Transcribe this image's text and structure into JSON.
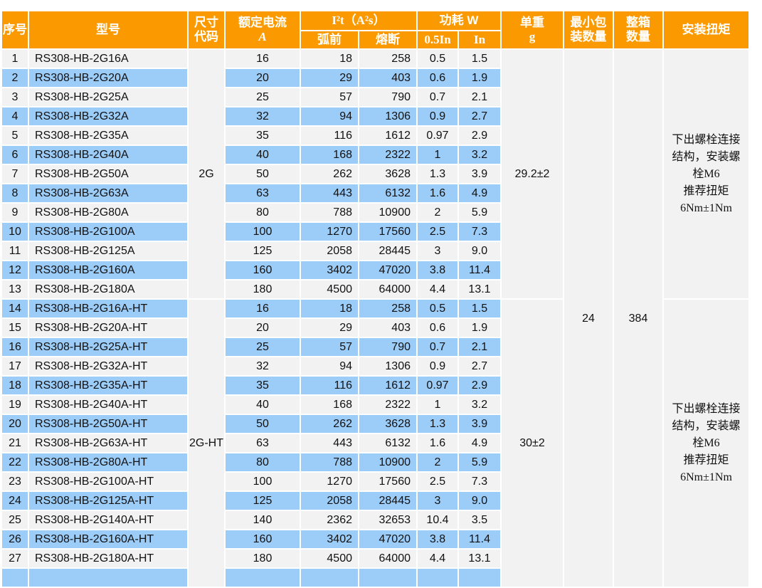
{
  "colors": {
    "header_bg": "#FB9A00",
    "header_text": "#FFFFFF",
    "row_blue": "#9CCCF8",
    "row_gray": "#F2F2F2",
    "merged_cell_bg": "#F2F2F2",
    "body_text": "#111111"
  },
  "table": {
    "header": {
      "index": "序号",
      "model": "型号",
      "size_code": "尺寸\n代码",
      "rated_current": "额定电流",
      "rated_current_unit": "A",
      "i2t": "I²t（A²s）",
      "prearc": "弧前",
      "melt": "熔断",
      "power": "功耗 W",
      "p05": "0.5In",
      "p1": "In",
      "weight": "单重",
      "weight_unit": "g",
      "min_pack": "最小包\n装数量",
      "box_qty": "整箱\n数量",
      "torque": "安装扭矩"
    },
    "shared": {
      "min_pack_qty": "24",
      "box_qty": "384"
    },
    "groups": [
      {
        "size_code": "2G",
        "unit_weight": "29.2±2",
        "torque_note": "下出螺栓连接\n结构，安装螺\n栓M6\n推荐扭矩\n6Nm±1Nm",
        "rows": [
          [
            "1",
            "RS308-HB-2G16A",
            "16",
            "18",
            "258",
            "0.5",
            "1.5"
          ],
          [
            "2",
            "RS308-HB-2G20A",
            "20",
            "29",
            "403",
            "0.6",
            "1.9"
          ],
          [
            "3",
            "RS308-HB-2G25A",
            "25",
            "57",
            "790",
            "0.7",
            "2.1"
          ],
          [
            "4",
            "RS308-HB-2G32A",
            "32",
            "94",
            "1306",
            "0.9",
            "2.7"
          ],
          [
            "5",
            "RS308-HB-2G35A",
            "35",
            "116",
            "1612",
            "0.97",
            "2.9"
          ],
          [
            "6",
            "RS308-HB-2G40A",
            "40",
            "168",
            "2322",
            "1",
            "3.2"
          ],
          [
            "7",
            "RS308-HB-2G50A",
            "50",
            "262",
            "3628",
            "1.3",
            "3.9"
          ],
          [
            "8",
            "RS308-HB-2G63A",
            "63",
            "443",
            "6132",
            "1.6",
            "4.9"
          ],
          [
            "9",
            "RS308-HB-2G80A",
            "80",
            "788",
            "10900",
            "2",
            "5.9"
          ],
          [
            "10",
            "RS308-HB-2G100A",
            "100",
            "1270",
            "17560",
            "2.5",
            "7.3"
          ],
          [
            "11",
            "RS308-HB-2G125A",
            "125",
            "2058",
            "28445",
            "3",
            "9.0"
          ],
          [
            "12",
            "RS308-HB-2G160A",
            "160",
            "3402",
            "47020",
            "3.8",
            "11.4"
          ],
          [
            "13",
            "RS308-HB-2G180A",
            "180",
            "4500",
            "64000",
            "4.4",
            "13.1"
          ]
        ]
      },
      {
        "size_code": "2G-HT",
        "unit_weight": "30±2",
        "torque_note": "下出螺栓连接\n结构，安装螺\n栓M6\n推荐扭矩\n6Nm±1Nm",
        "rows": [
          [
            "14",
            "RS308-HB-2G16A-HT",
            "16",
            "18",
            "258",
            "0.5",
            "1.5"
          ],
          [
            "15",
            "RS308-HB-2G20A-HT",
            "20",
            "29",
            "403",
            "0.6",
            "1.9"
          ],
          [
            "16",
            "RS308-HB-2G25A-HT",
            "25",
            "57",
            "790",
            "0.7",
            "2.1"
          ],
          [
            "17",
            "RS308-HB-2G32A-HT",
            "32",
            "94",
            "1306",
            "0.9",
            "2.7"
          ],
          [
            "18",
            "RS308-HB-2G35A-HT",
            "35",
            "116",
            "1612",
            "0.97",
            "2.9"
          ],
          [
            "19",
            "RS308-HB-2G40A-HT",
            "40",
            "168",
            "2322",
            "1",
            "3.2"
          ],
          [
            "20",
            "RS308-HB-2G50A-HT",
            "50",
            "262",
            "3628",
            "1.3",
            "3.9"
          ],
          [
            "21",
            "RS308-HB-2G63A-HT",
            "63",
            "443",
            "6132",
            "1.6",
            "4.9"
          ],
          [
            "22",
            "RS308-HB-2G80A-HT",
            "80",
            "788",
            "10900",
            "2",
            "5.9"
          ],
          [
            "23",
            "RS308-HB-2G100A-HT",
            "100",
            "1270",
            "17560",
            "2.5",
            "7.3"
          ],
          [
            "24",
            "RS308-HB-2G125A-HT",
            "125",
            "2058",
            "28445",
            "3",
            "9.0"
          ],
          [
            "25",
            "RS308-HB-2G140A-HT",
            "140",
            "2362",
            "32653",
            "10.4",
            "3.5"
          ],
          [
            "26",
            "RS308-HB-2G160A-HT",
            "160",
            "3402",
            "47020",
            "3.8",
            "11.4"
          ],
          [
            "27",
            "RS308-HB-2G180A-HT",
            "180",
            "4500",
            "64000",
            "4.4",
            "13.1"
          ]
        ]
      }
    ],
    "partial_row_visible": true
  }
}
